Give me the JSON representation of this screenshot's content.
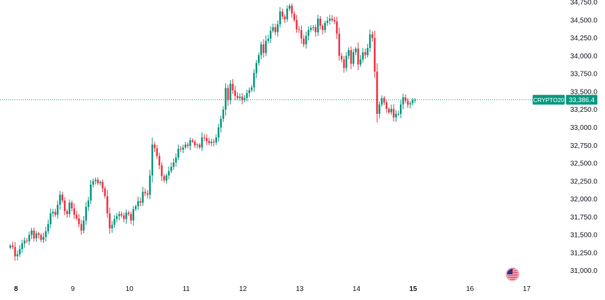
{
  "chart_data": {
    "type": "candlestick",
    "symbol_label": "CRYPTO20",
    "last_price_label": "33,386.4",
    "last_price": 33386.4,
    "ylim": [
      30900,
      34780
    ],
    "yticks": [
      {
        "value": 31000,
        "label": "31,000.0"
      },
      {
        "value": 31250,
        "label": "31,250.0"
      },
      {
        "value": 31500,
        "label": "31,500.0"
      },
      {
        "value": 31750,
        "label": "31,750.0"
      },
      {
        "value": 32000,
        "label": "32,000.0"
      },
      {
        "value": 32250,
        "label": "32,250.0"
      },
      {
        "value": 32500,
        "label": "32,500.0"
      },
      {
        "value": 32750,
        "label": "32,750.0"
      },
      {
        "value": 33000,
        "label": "33,000.0"
      },
      {
        "value": 33250,
        "label": "33,250.0"
      },
      {
        "value": 33500,
        "label": "33,500.0"
      },
      {
        "value": 33750,
        "label": "33,750.0"
      },
      {
        "value": 34000,
        "label": "34,000.0"
      },
      {
        "value": 34250,
        "label": "34,250.0"
      },
      {
        "value": 34500,
        "label": "34,500.0"
      },
      {
        "value": 34750,
        "label": "34,750.0"
      }
    ],
    "xticks": [
      {
        "day": 8,
        "label": "8",
        "bold": true
      },
      {
        "day": 9,
        "label": "9",
        "bold": false
      },
      {
        "day": 10,
        "label": "10",
        "bold": false
      },
      {
        "day": 11,
        "label": "11",
        "bold": false
      },
      {
        "day": 12,
        "label": "12",
        "bold": false
      },
      {
        "day": 13,
        "label": "13",
        "bold": false
      },
      {
        "day": 14,
        "label": "14",
        "bold": false
      },
      {
        "day": 15,
        "label": "15",
        "bold": true
      },
      {
        "day": 16,
        "label": "16",
        "bold": false
      },
      {
        "day": 17,
        "label": "17",
        "bold": false
      }
    ],
    "xlim_days": [
      7.9,
      17.4
    ],
    "candle_day_start": 7.9,
    "candle_step_days": 0.0417,
    "closes": [
      31350,
      31330,
      31200,
      31230,
      31300,
      31380,
      31420,
      31410,
      31500,
      31560,
      31450,
      31520,
      31500,
      31430,
      31470,
      31550,
      31650,
      31800,
      31820,
      31780,
      31920,
      32060,
      31980,
      31830,
      31790,
      31950,
      31870,
      31780,
      31730,
      31650,
      31560,
      31700,
      31890,
      31980,
      32200,
      32250,
      32270,
      32220,
      32240,
      32150,
      32040,
      31800,
      31590,
      31640,
      31720,
      31760,
      31790,
      31770,
      31720,
      31810,
      31790,
      31700,
      31860,
      31900,
      31970,
      31950,
      32100,
      32080,
      32060,
      32330,
      32760,
      32710,
      32600,
      32470,
      32320,
      32260,
      32330,
      32390,
      32450,
      32510,
      32580,
      32700,
      32690,
      32720,
      32760,
      32740,
      32820,
      32800,
      32750,
      32760,
      32720,
      32860,
      32850,
      32810,
      32780,
      32800,
      32790,
      32860,
      33000,
      33120,
      33250,
      33550,
      33380,
      33610,
      33520,
      33440,
      33410,
      33430,
      33380,
      33410,
      33480,
      33520,
      33560,
      33760,
      33900,
      34010,
      34160,
      34040,
      34210,
      34240,
      34350,
      34400,
      34330,
      34440,
      34620,
      34550,
      34510,
      34660,
      34700,
      34590,
      34500,
      34370,
      34360,
      34240,
      34160,
      34280,
      34360,
      34390,
      34400,
      34330,
      34520,
      34420,
      34360,
      34460,
      34490,
      34520,
      34500,
      34480,
      34310,
      34000,
      33950,
      33830,
      34000,
      34080,
      33890,
      34050,
      34100,
      33880,
      33950,
      34050,
      34010,
      34110,
      34300,
      34250,
      33780,
      33190,
      33320,
      33410,
      33350,
      33260,
      33210,
      33260,
      33140,
      33190,
      33190,
      33320,
      33420,
      33370,
      33320,
      33340,
      33380,
      33386.4
    ],
    "colors": {
      "up": "#089981",
      "down": "#f23645",
      "price_line": "#089981",
      "label_bg": "#089981",
      "label_text": "#ffffff",
      "axis_text": "#131722",
      "background": "#ffffff"
    },
    "event_icon": "us-flag-icon"
  }
}
